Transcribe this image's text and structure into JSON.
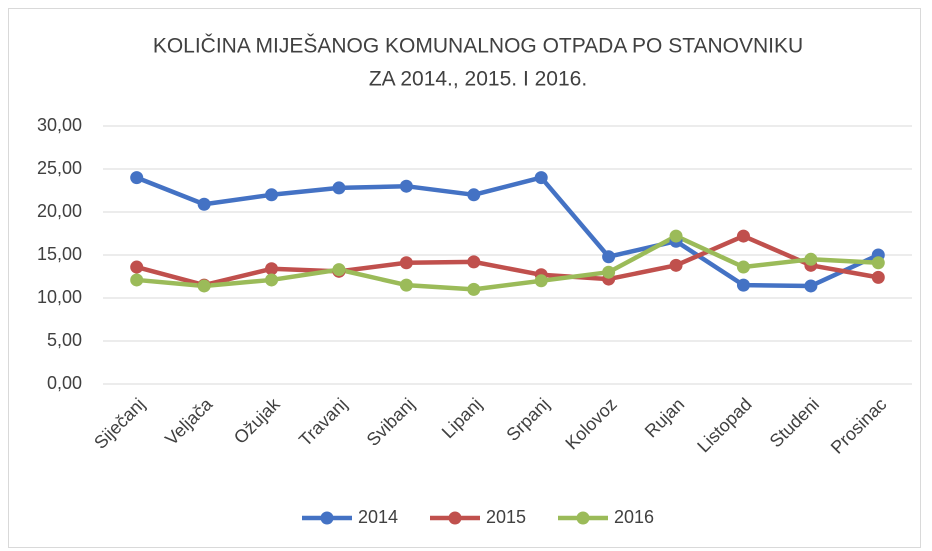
{
  "chart_data": {
    "type": "line",
    "title": [
      "KOLIČINA MIJEŠANOG KOMUNALNOG OTPADA PO STANOVNIKU",
      "ZA 2014., 2015. I 2016."
    ],
    "categories": [
      "Siječanj",
      "Veljača",
      "Ožujak",
      "Travanj",
      "Svibanj",
      "Lipanj",
      "Srpanj",
      "Kolovoz",
      "Rujan",
      "Listopad",
      "Studeni",
      "Prosinac"
    ],
    "series": [
      {
        "name": "2014",
        "color": "#4472c4",
        "values": [
          24.0,
          20.9,
          22.0,
          22.8,
          23.0,
          22.0,
          24.0,
          14.8,
          16.6,
          11.5,
          11.4,
          15.0
        ]
      },
      {
        "name": "2015",
        "color": "#c0504d",
        "values": [
          13.6,
          11.5,
          13.4,
          13.1,
          14.1,
          14.2,
          12.7,
          12.2,
          13.8,
          17.2,
          13.8,
          12.4
        ]
      },
      {
        "name": "2016",
        "color": "#9bbb59",
        "values": [
          12.1,
          11.4,
          12.1,
          13.3,
          11.5,
          11.0,
          12.0,
          13.0,
          17.2,
          13.6,
          14.5,
          14.1
        ]
      }
    ],
    "ylim": [
      0,
      30
    ],
    "yticks": [
      {
        "value": 0,
        "label": "0,00"
      },
      {
        "value": 5,
        "label": "5,00"
      },
      {
        "value": 10,
        "label": "10,00"
      },
      {
        "value": 15,
        "label": "15,00"
      },
      {
        "value": 20,
        "label": "20,00"
      },
      {
        "value": 25,
        "label": "25,00"
      },
      {
        "value": 30,
        "label": "30,00"
      }
    ],
    "grid": true,
    "legend": "bottom"
  }
}
